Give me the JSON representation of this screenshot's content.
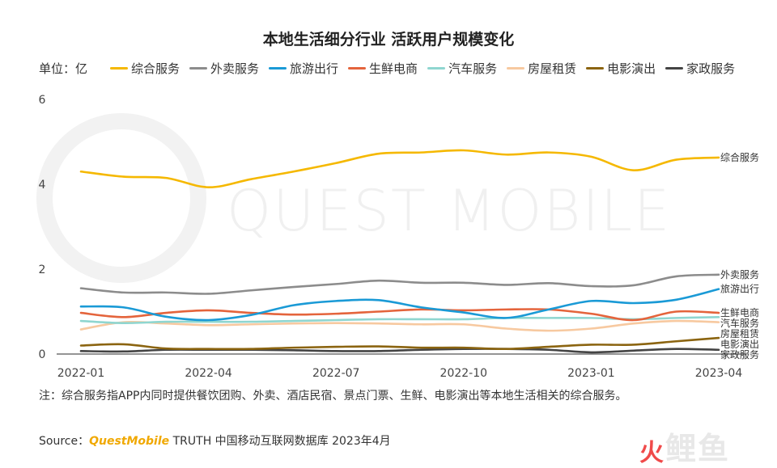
{
  "title": "本地生活细分行业 活跃用户规模变化",
  "unit_label": "单位：亿",
  "watermark": "QUEST MOBILE",
  "note": "注：综合服务指APP内同时提供餐饮团购、外卖、酒店民宿、景点门票、生鲜、电影演出等本地生活相关的综合服务。",
  "source": {
    "prefix": "Source：",
    "brand": "QuestMobile",
    "rest": "TRUTH 中国移动互联网数据库 2023年4月"
  },
  "logo": {
    "mark": "火",
    "text": "鲤鱼"
  },
  "chart_data": {
    "type": "line",
    "title": "本地生活细分行业 活跃用户规模变化",
    "ylabel": "单位：亿",
    "ylim": [
      0,
      6
    ],
    "y_ticks": [
      "0",
      "2",
      "4",
      "6"
    ],
    "x": [
      "2022-01",
      "2022-02",
      "2022-03",
      "2022-04",
      "2022-05",
      "2022-06",
      "2022-07",
      "2022-08",
      "2022-09",
      "2022-10",
      "2022-11",
      "2022-12",
      "2023-01",
      "2023-02",
      "2023-03",
      "2023-04"
    ],
    "x_tick_labels": [
      "2022-01",
      "",
      "",
      "2022-04",
      "",
      "",
      "2022-07",
      "",
      "",
      "2022-10",
      "",
      "",
      "2023-01",
      "",
      "",
      "2023-04"
    ],
    "grid": false,
    "legend_position": "top",
    "series": [
      {
        "name": "综合服务",
        "color": "#f5b800",
        "values": [
          4.3,
          4.18,
          4.15,
          3.93,
          4.12,
          4.3,
          4.5,
          4.72,
          4.75,
          4.8,
          4.7,
          4.75,
          4.65,
          4.33,
          4.58,
          4.63
        ]
      },
      {
        "name": "外卖服务",
        "color": "#8c8c8c",
        "values": [
          1.55,
          1.45,
          1.45,
          1.42,
          1.5,
          1.58,
          1.65,
          1.73,
          1.68,
          1.68,
          1.63,
          1.67,
          1.6,
          1.62,
          1.83,
          1.87
        ]
      },
      {
        "name": "旅游出行",
        "color": "#1a9ad6",
        "values": [
          1.12,
          1.1,
          0.88,
          0.8,
          0.92,
          1.15,
          1.25,
          1.27,
          1.1,
          0.98,
          0.85,
          1.05,
          1.25,
          1.2,
          1.28,
          1.53
        ]
      },
      {
        "name": "生鲜电商",
        "color": "#e4643c",
        "values": [
          0.97,
          0.87,
          0.97,
          1.03,
          0.97,
          0.93,
          0.95,
          1.0,
          1.05,
          1.03,
          1.05,
          1.05,
          0.95,
          0.8,
          1.0,
          0.97
        ]
      },
      {
        "name": "汽车服务",
        "color": "#8fd6d0",
        "values": [
          0.78,
          0.73,
          0.76,
          0.76,
          0.76,
          0.78,
          0.8,
          0.82,
          0.82,
          0.82,
          0.85,
          0.85,
          0.85,
          0.82,
          0.85,
          0.87
        ]
      },
      {
        "name": "房屋租赁",
        "color": "#f7c9a0",
        "values": [
          0.58,
          0.75,
          0.72,
          0.68,
          0.7,
          0.72,
          0.73,
          0.72,
          0.7,
          0.7,
          0.6,
          0.55,
          0.6,
          0.72,
          0.78,
          0.75
        ]
      },
      {
        "name": "电影演出",
        "color": "#8b6410",
        "values": [
          0.2,
          0.23,
          0.13,
          0.12,
          0.12,
          0.15,
          0.17,
          0.18,
          0.15,
          0.15,
          0.12,
          0.17,
          0.22,
          0.22,
          0.3,
          0.38
        ]
      },
      {
        "name": "家政服务",
        "color": "#444444",
        "values": [
          0.07,
          0.06,
          0.1,
          0.1,
          0.1,
          0.09,
          0.07,
          0.07,
          0.1,
          0.12,
          0.12,
          0.1,
          0.04,
          0.08,
          0.12,
          0.1
        ]
      }
    ]
  }
}
